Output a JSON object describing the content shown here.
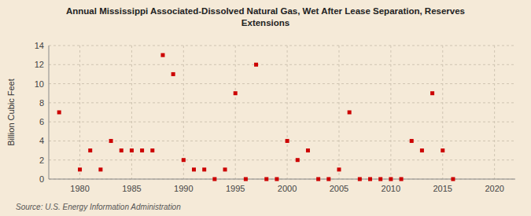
{
  "chart_data": {
    "type": "scatter",
    "title": "Annual Mississippi Associated-Dissolved Natural Gas, Wet After Lease Separation, Reserves\nExtensions",
    "ylabel": "Billion Cubic Feet",
    "annotations": [
      "Source: U.S. Energy Information Administration"
    ],
    "x": [
      1978,
      1980,
      1981,
      1982,
      1983,
      1984,
      1985,
      1986,
      1987,
      1988,
      1989,
      1990,
      1991,
      1992,
      1993,
      1994,
      1995,
      1996,
      1997,
      1998,
      1999,
      2000,
      2001,
      2002,
      2003,
      2004,
      2005,
      2006,
      2007,
      2008,
      2009,
      2010,
      2011,
      2012,
      2013,
      2014,
      2015,
      2016
    ],
    "values": [
      7,
      1,
      3,
      1,
      4,
      3,
      3,
      3,
      3,
      13,
      11,
      2,
      1,
      1,
      0,
      1,
      9,
      0,
      12,
      0,
      0,
      4,
      2,
      3,
      0,
      0,
      1,
      7,
      0,
      0,
      0,
      0,
      0,
      4,
      3,
      9,
      3,
      0
    ],
    "color": "#cc0000",
    "marker": "square",
    "xlim": [
      1977,
      2022
    ],
    "ylim": [
      0,
      14
    ],
    "xticks": [
      1980,
      1985,
      1990,
      1995,
      2000,
      2005,
      2010,
      2015,
      2020
    ],
    "yticks": [
      0,
      2,
      4,
      6,
      8,
      10,
      12,
      14
    ],
    "grid": true
  }
}
